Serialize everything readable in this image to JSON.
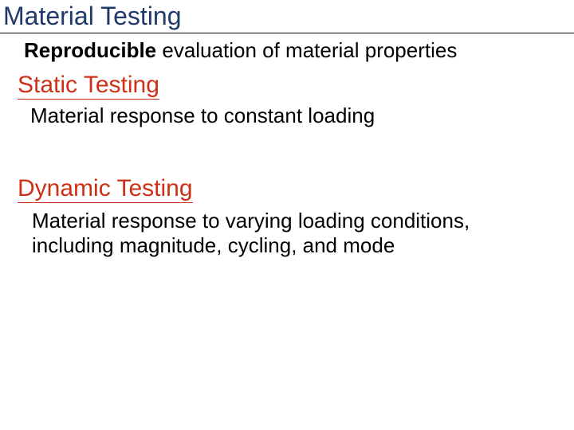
{
  "colors": {
    "title": "#1f3a68",
    "heading": "#cc3118",
    "body": "#000000",
    "background": "#ffffff",
    "rule": "#000000"
  },
  "typography": {
    "title_fontsize": 32,
    "subtitle_fontsize": 26,
    "heading_fontsize": 30,
    "body_fontsize": 26,
    "font_family": "Arial"
  },
  "title": "Material Testing",
  "subtitle_bold": "Reproducible",
  "subtitle_rest": " evaluation of material properties",
  "sections": [
    {
      "heading": "Static Testing",
      "body": "Material response to constant loading"
    },
    {
      "heading": "Dynamic Testing",
      "body": "Material response to varying loading conditions, including magnitude, cycling, and mode"
    }
  ]
}
